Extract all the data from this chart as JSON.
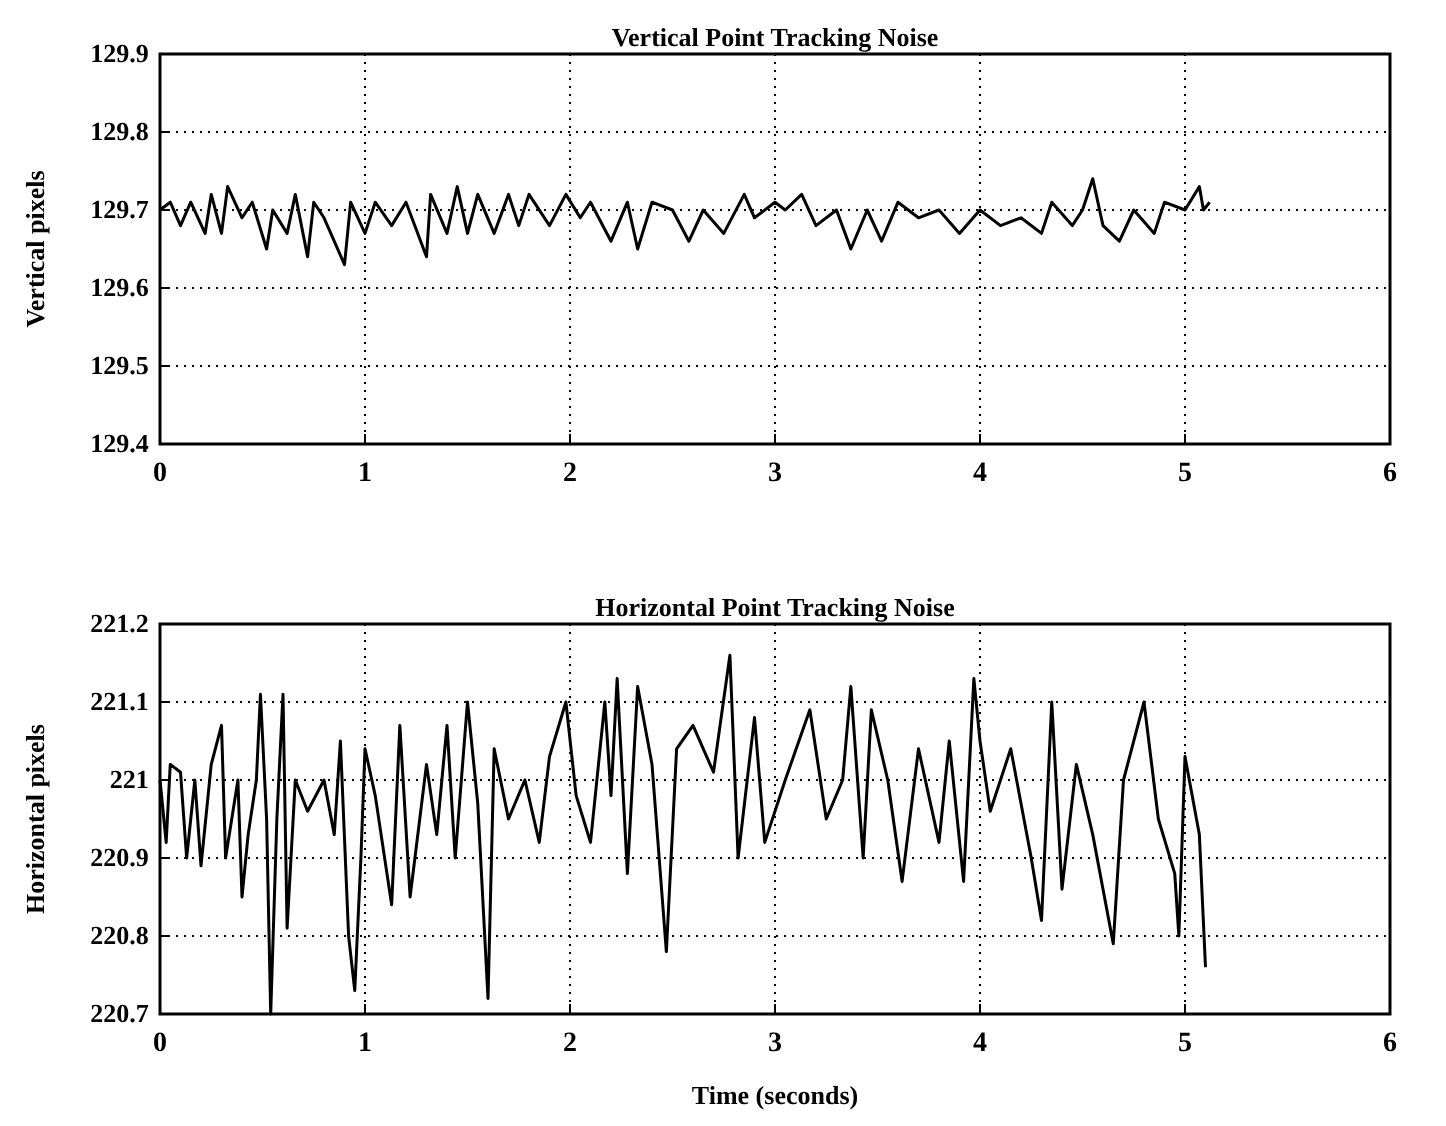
{
  "chart_data": [
    {
      "type": "line",
      "title": "Vertical Point Tracking Noise",
      "ylabel": "Vertical pixels",
      "color": "#000000",
      "grid": true,
      "line_style": "solid",
      "xlim": [
        0,
        6
      ],
      "xticks": [
        0,
        1,
        2,
        3,
        4,
        5,
        6
      ],
      "ylim": [
        129.4,
        129.9
      ],
      "yticks": [
        129.4,
        129.5,
        129.6,
        129.7,
        129.8,
        129.9
      ],
      "x": [
        0,
        0.05,
        0.1,
        0.15,
        0.22,
        0.25,
        0.3,
        0.33,
        0.4,
        0.45,
        0.52,
        0.55,
        0.62,
        0.66,
        0.72,
        0.75,
        0.8,
        0.9,
        0.93,
        1.0,
        1.05,
        1.13,
        1.2,
        1.3,
        1.32,
        1.4,
        1.45,
        1.5,
        1.55,
        1.63,
        1.7,
        1.75,
        1.8,
        1.9,
        1.98,
        2.05,
        2.1,
        2.2,
        2.28,
        2.33,
        2.4,
        2.5,
        2.58,
        2.65,
        2.75,
        2.85,
        2.9,
        3.0,
        3.05,
        3.13,
        3.2,
        3.3,
        3.37,
        3.45,
        3.52,
        3.6,
        3.7,
        3.8,
        3.9,
        4.0,
        4.1,
        4.2,
        4.3,
        4.35,
        4.45,
        4.5,
        4.55,
        4.6,
        4.68,
        4.75,
        4.85,
        4.9,
        5.0,
        5.07,
        5.09,
        5.12
      ],
      "values": [
        129.7,
        129.71,
        129.68,
        129.71,
        129.67,
        129.72,
        129.67,
        129.73,
        129.69,
        129.71,
        129.65,
        129.7,
        129.67,
        129.72,
        129.64,
        129.71,
        129.69,
        129.63,
        129.71,
        129.67,
        129.71,
        129.68,
        129.71,
        129.64,
        129.72,
        129.67,
        129.73,
        129.67,
        129.72,
        129.67,
        129.72,
        129.68,
        129.72,
        129.68,
        129.72,
        129.69,
        129.71,
        129.66,
        129.71,
        129.65,
        129.71,
        129.7,
        129.66,
        129.7,
        129.67,
        129.72,
        129.69,
        129.71,
        129.7,
        129.72,
        129.68,
        129.7,
        129.65,
        129.7,
        129.66,
        129.71,
        129.69,
        129.7,
        129.67,
        129.7,
        129.68,
        129.69,
        129.67,
        129.71,
        129.68,
        129.7,
        129.74,
        129.68,
        129.66,
        129.7,
        129.67,
        129.71,
        129.7,
        129.73,
        129.7,
        129.71
      ]
    },
    {
      "type": "line",
      "title": "Horizontal Point Tracking Noise",
      "ylabel": "Horizontal pixels",
      "xlabel": "Time (seconds)",
      "color": "#000000",
      "grid": true,
      "line_style": "solid",
      "xlim": [
        0,
        6
      ],
      "xticks": [
        0,
        1,
        2,
        3,
        4,
        5,
        6
      ],
      "ylim": [
        220.7,
        221.2
      ],
      "yticks": [
        220.7,
        220.8,
        220.9,
        221,
        221.1,
        221.2
      ],
      "x": [
        0,
        0.03,
        0.05,
        0.1,
        0.13,
        0.17,
        0.2,
        0.25,
        0.3,
        0.32,
        0.38,
        0.4,
        0.43,
        0.47,
        0.49,
        0.52,
        0.54,
        0.57,
        0.6,
        0.62,
        0.66,
        0.72,
        0.8,
        0.85,
        0.88,
        0.92,
        0.95,
        0.98,
        1.0,
        1.05,
        1.13,
        1.17,
        1.22,
        1.3,
        1.35,
        1.4,
        1.44,
        1.5,
        1.55,
        1.6,
        1.63,
        1.7,
        1.78,
        1.85,
        1.9,
        1.98,
        2.03,
        2.1,
        2.17,
        2.2,
        2.23,
        2.28,
        2.33,
        2.4,
        2.47,
        2.52,
        2.6,
        2.7,
        2.78,
        2.82,
        2.9,
        2.95,
        3.05,
        3.17,
        3.25,
        3.33,
        3.37,
        3.43,
        3.47,
        3.55,
        3.62,
        3.7,
        3.8,
        3.85,
        3.92,
        3.97,
        4.0,
        4.05,
        4.15,
        4.25,
        4.3,
        4.35,
        4.4,
        4.47,
        4.55,
        4.65,
        4.7,
        4.8,
        4.87,
        4.95,
        4.97,
        5.0,
        5.07,
        5.1
      ],
      "values": [
        221.0,
        220.92,
        221.02,
        221.01,
        220.9,
        221.0,
        220.89,
        221.02,
        221.07,
        220.9,
        221.0,
        220.85,
        220.93,
        221.0,
        221.11,
        220.95,
        220.7,
        220.95,
        221.11,
        220.81,
        221.0,
        220.96,
        221.0,
        220.93,
        221.05,
        220.8,
        220.73,
        220.9,
        221.04,
        220.98,
        220.84,
        221.07,
        220.85,
        221.02,
        220.93,
        221.07,
        220.9,
        221.1,
        220.97,
        220.72,
        221.04,
        220.95,
        221.0,
        220.92,
        221.03,
        221.1,
        220.98,
        220.92,
        221.1,
        220.98,
        221.13,
        220.88,
        221.12,
        221.02,
        220.78,
        221.04,
        221.07,
        221.01,
        221.16,
        220.9,
        221.08,
        220.92,
        221.0,
        221.09,
        220.95,
        221.0,
        221.12,
        220.9,
        221.09,
        221.0,
        220.87,
        221.04,
        220.92,
        221.05,
        220.87,
        221.13,
        221.05,
        220.96,
        221.04,
        220.9,
        220.82,
        221.1,
        220.86,
        221.02,
        220.93,
        220.79,
        221.0,
        221.1,
        220.95,
        220.88,
        220.8,
        221.03,
        220.93,
        220.76
      ]
    }
  ]
}
